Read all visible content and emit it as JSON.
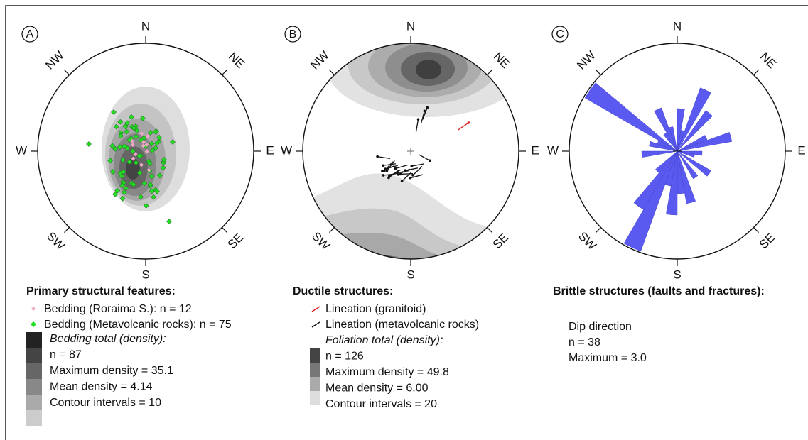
{
  "compass": [
    "N",
    "NE",
    "E",
    "SE",
    "S",
    "SW",
    "W",
    "NW"
  ],
  "panels": [
    {
      "letter": "A",
      "title": "Primary structural features:",
      "legend": [
        "Bedding (Roraima S.): n = 12",
        "Bedding (Metavolcanic rocks): n = 75"
      ],
      "density": [
        "Bedding total (density):",
        "n = 87",
        "Maximum density = 35.1",
        "Mean density = 4.14",
        "Contour intervals = 10"
      ]
    },
    {
      "letter": "B",
      "title": "Ductile structures:",
      "legend": [
        "Lineation (granitoid)",
        "Lineation (metavolcanic rocks)"
      ],
      "density": [
        "Foliation total (density):",
        "n = 126",
        "Maximum density = 49.8",
        "Mean density = 6.00",
        "Contour intervals = 20"
      ]
    },
    {
      "letter": "C",
      "title": "Brittle structures (faults and fractures):",
      "legend": [],
      "density": [
        "Dip direction",
        "n = 38",
        "Maximum = 3.0"
      ]
    }
  ]
}
